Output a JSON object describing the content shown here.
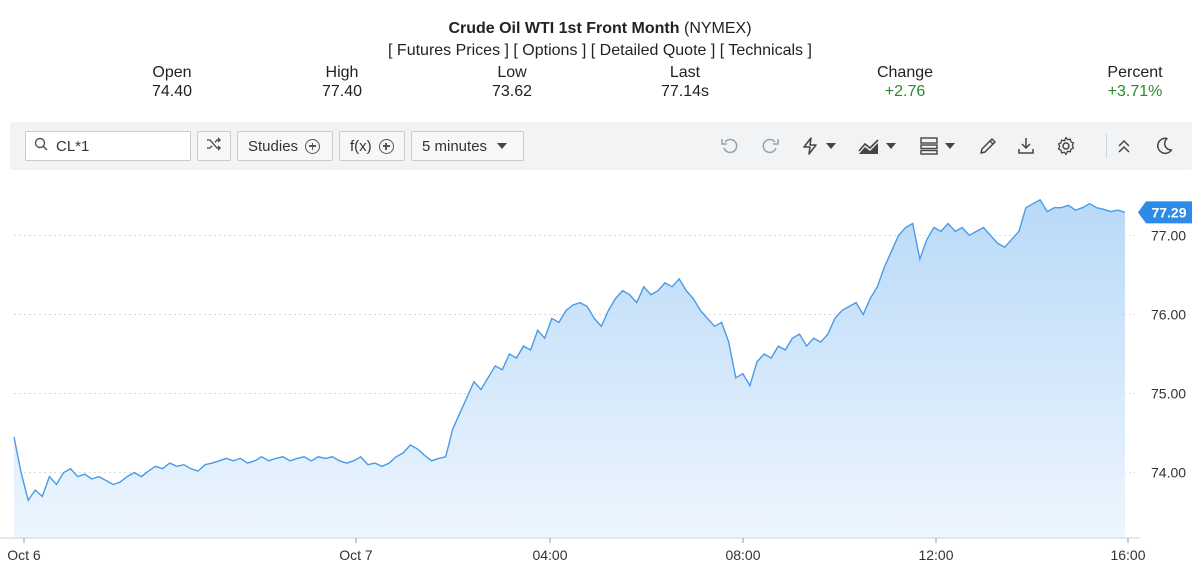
{
  "header": {
    "title": "Crude Oil WTI 1st Front Month",
    "exchange": "(NYMEX)",
    "links": [
      "[ Futures Prices ]",
      "[ Options ]",
      "[ Detailed Quote ]",
      "[ Technicals ]"
    ]
  },
  "stats": {
    "open_label": "Open",
    "open_value": "74.40",
    "high_label": "High",
    "high_value": "77.40",
    "low_label": "Low",
    "low_value": "73.62",
    "last_label": "Last",
    "last_value": "77.14s",
    "change_label": "Change",
    "change_value": "+2.76",
    "percent_label": "Percent",
    "percent_value": "+3.71%"
  },
  "toolbar": {
    "symbol": "CL*1",
    "studies_label": "Studies",
    "fx_label": "f(x)",
    "interval_label": "5 minutes",
    "icons": [
      "search-icon",
      "shuffle-icon",
      "undo-icon",
      "redo-icon",
      "lightning-icon",
      "chart-type-icon",
      "template-icon",
      "pencil-icon",
      "download-icon",
      "gear-icon",
      "collapse-icon",
      "moon-icon"
    ]
  },
  "colors": {
    "line": "#4a9be8",
    "fill_top": "#b9d9f8",
    "fill_bottom": "#eef6fe",
    "price_tag": "#2d8ae6",
    "positive": "#2a8a2a"
  },
  "chart_data": {
    "type": "area",
    "title": "",
    "x_tick_labels": [
      "Oct 6",
      "Oct 7",
      "04:00",
      "08:00",
      "12:00",
      "16:00"
    ],
    "y_tick_labels": [
      "74.00",
      "75.00",
      "76.00",
      "77.00"
    ],
    "ylim": [
      73.3,
      77.7
    ],
    "current_price_label": "77.29",
    "grid": "horizontal dashed",
    "series": [
      {
        "values": [
          74.45,
          74.0,
          73.65,
          73.78,
          73.7,
          73.95,
          73.85,
          74.0,
          74.05,
          73.95,
          73.98,
          73.92,
          73.95,
          73.9,
          73.85,
          73.88,
          73.95,
          74.0,
          73.95,
          74.02,
          74.08,
          74.05,
          74.12,
          74.08,
          74.1,
          74.05,
          74.02,
          74.1,
          74.12,
          74.15,
          74.18,
          74.15,
          74.18,
          74.12,
          74.15,
          74.2,
          74.15,
          74.18,
          74.2,
          74.15,
          74.18,
          74.2,
          74.15,
          74.2,
          74.18,
          74.2,
          74.15,
          74.12,
          74.15,
          74.2,
          74.1,
          74.12,
          74.08,
          74.12,
          74.2,
          74.25,
          74.35,
          74.3,
          74.22,
          74.15,
          74.18,
          74.2,
          74.55,
          74.75,
          74.95,
          75.15,
          75.05,
          75.2,
          75.35,
          75.3,
          75.5,
          75.45,
          75.6,
          75.55,
          75.8,
          75.7,
          75.95,
          75.9,
          76.05,
          76.12,
          76.15,
          76.1,
          75.95,
          75.85,
          76.05,
          76.2,
          76.3,
          76.25,
          76.15,
          76.35,
          76.25,
          76.3,
          76.4,
          76.35,
          76.45,
          76.3,
          76.2,
          76.05,
          75.95,
          75.85,
          75.9,
          75.65,
          75.2,
          75.25,
          75.1,
          75.4,
          75.5,
          75.45,
          75.6,
          75.55,
          75.7,
          75.75,
          75.6,
          75.7,
          75.65,
          75.75,
          75.95,
          76.05,
          76.1,
          76.15,
          76.0,
          76.2,
          76.35,
          76.6,
          76.8,
          77.0,
          77.1,
          77.15,
          76.7,
          76.95,
          77.1,
          77.05,
          77.15,
          77.05,
          77.1,
          77.0,
          77.05,
          77.1,
          77.0,
          76.9,
          76.85,
          76.95,
          77.05,
          77.35,
          77.4,
          77.45,
          77.3,
          77.35,
          77.35,
          77.38,
          77.32,
          77.35,
          77.4,
          77.35,
          77.33,
          77.3,
          77.32,
          77.29
        ]
      }
    ]
  }
}
